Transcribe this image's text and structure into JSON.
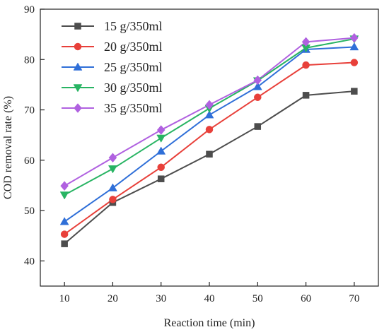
{
  "chart_data": {
    "type": "line",
    "title": "",
    "xlabel": "Reaction time (min)",
    "ylabel": "COD removal rate (%)",
    "x": [
      10,
      20,
      30,
      40,
      50,
      60,
      70
    ],
    "xlim": [
      5,
      75
    ],
    "ylim": [
      35,
      90
    ],
    "xticks": [
      10,
      20,
      30,
      40,
      50,
      60,
      70
    ],
    "yticks": [
      40,
      50,
      60,
      70,
      80,
      90
    ],
    "grid": false,
    "legend_position": "top-left",
    "series": [
      {
        "name": "15 g/350ml",
        "color": "#4d4d4d",
        "marker": "square",
        "values": [
          43.4,
          51.6,
          56.3,
          61.2,
          66.7,
          72.9,
          73.7
        ]
      },
      {
        "name": "20 g/350ml",
        "color": "#e8403a",
        "marker": "circle",
        "values": [
          45.3,
          52.2,
          58.6,
          66.1,
          72.5,
          78.9,
          79.4
        ]
      },
      {
        "name": "25 g/350ml",
        "color": "#2f6fd8",
        "marker": "triangle-up",
        "values": [
          47.8,
          54.5,
          61.8,
          69.0,
          74.6,
          82.0,
          82.5
        ]
      },
      {
        "name": "30 g/350ml",
        "color": "#28b463",
        "marker": "triangle-down",
        "values": [
          53.1,
          58.3,
          64.4,
          70.3,
          75.8,
          82.3,
          84.1
        ]
      },
      {
        "name": "35 g/350ml",
        "color": "#b061e0",
        "marker": "diamond",
        "values": [
          54.9,
          60.5,
          66.0,
          71.0,
          75.9,
          83.5,
          84.3
        ]
      }
    ]
  }
}
